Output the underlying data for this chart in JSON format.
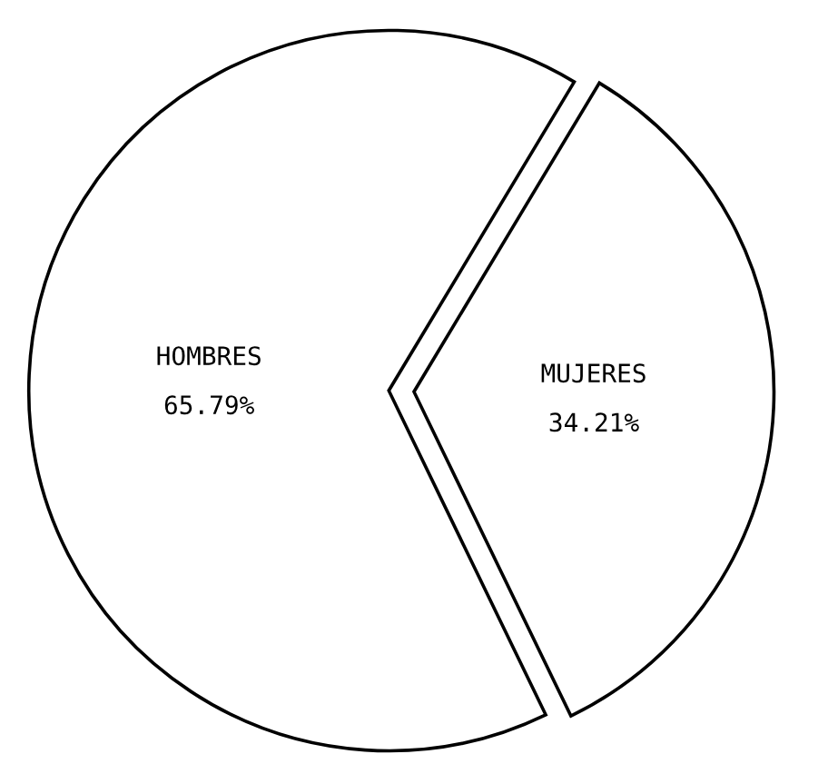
{
  "chart_data": {
    "type": "pie",
    "categories": [
      "HOMBRES",
      "MUJERES"
    ],
    "values": [
      65.79,
      34.21
    ],
    "value_labels": [
      "65.79%",
      "34.21%"
    ],
    "colors": [
      "#ffffff",
      "#ffffff"
    ]
  }
}
